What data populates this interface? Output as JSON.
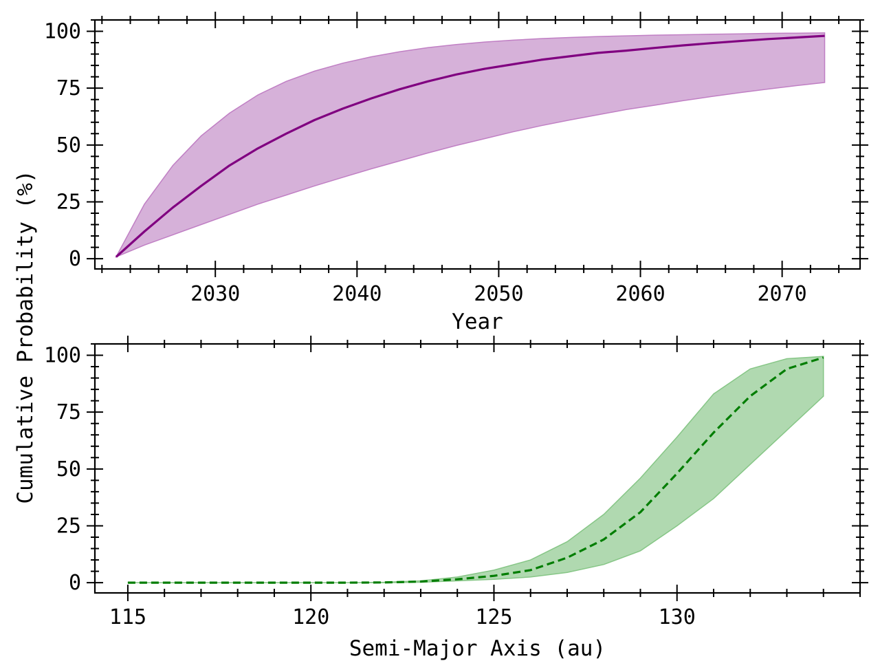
{
  "ylabel": "Cumulative Probability (%)",
  "chart_data": [
    {
      "type": "line",
      "xlabel": "Year",
      "ylabel": "Cumulative Probability (%)",
      "xlim": [
        2021.5,
        2075.5
      ],
      "ylim": [
        -4.5,
        105
      ],
      "xticks": [
        2030,
        2040,
        2050,
        2060,
        2070
      ],
      "yticks": [
        0,
        25,
        50,
        75,
        100
      ],
      "xminor_step": 2,
      "yminor_step": 5,
      "grid": false,
      "color": "#800080",
      "band_color": "#d6b1d9",
      "band_edge": "#c07fc4",
      "line_style": "solid",
      "x": [
        2023,
        2025,
        2027,
        2029,
        2031,
        2033,
        2035,
        2037,
        2039,
        2041,
        2043,
        2045,
        2047,
        2049,
        2051,
        2053,
        2055,
        2057,
        2059,
        2061,
        2063,
        2065,
        2067,
        2069,
        2071,
        2073
      ],
      "series": [
        {
          "values": [
            0.8,
            12,
            22.5,
            32,
            41,
            48.5,
            55,
            61,
            66,
            70.5,
            74.5,
            78,
            81,
            83.5,
            85.5,
            87.5,
            89,
            90.5,
            91.5,
            92.7,
            93.8,
            94.8,
            95.7,
            96.6,
            97.3,
            98
          ]
        }
      ],
      "band_lower": [
        0.8,
        6,
        10.5,
        15,
        19.5,
        24,
        28,
        32,
        35.8,
        39.5,
        43,
        46.5,
        49.8,
        52.8,
        55.8,
        58.5,
        61,
        63.3,
        65.6,
        67.5,
        69.5,
        71.3,
        73,
        74.6,
        76.1,
        77.5
      ],
      "band_upper": [
        0.8,
        24,
        41,
        54,
        64,
        72,
        78,
        82.5,
        86,
        88.8,
        91,
        92.8,
        94.2,
        95.3,
        96.1,
        96.8,
        97.3,
        97.7,
        98,
        98.3,
        98.5,
        98.7,
        98.9,
        99.1,
        99.2,
        99.3
      ]
    },
    {
      "type": "line",
      "xlabel": "Semi-Major Axis (au)",
      "ylabel": "Cumulative Probability (%)",
      "xlim": [
        114.1,
        135
      ],
      "ylim": [
        -4.5,
        105
      ],
      "xticks": [
        115,
        120,
        125,
        130
      ],
      "yticks": [
        0,
        25,
        50,
        75,
        100
      ],
      "xminor_step": 1,
      "yminor_step": 5,
      "grid": false,
      "color": "#007d00",
      "band_color": "#b0d9b0",
      "band_edge": "#86c686",
      "line_style": "dashed",
      "x": [
        115,
        116,
        117,
        118,
        119,
        120,
        121,
        122,
        123,
        124,
        125,
        126,
        127,
        128,
        129,
        130,
        131,
        132,
        133,
        134
      ],
      "series": [
        {
          "values": [
            0,
            0,
            0,
            0,
            0,
            0,
            0,
            0.1,
            0.5,
            1.5,
            3,
            5.5,
            11,
            19,
            31,
            48,
            66,
            82,
            94,
            99
          ]
        }
      ],
      "band_lower": [
        0,
        0,
        0,
        0,
        0,
        0,
        0,
        0,
        0.2,
        0.8,
        1.5,
        2.5,
        4.5,
        8,
        14,
        25,
        37,
        52,
        67,
        82
      ],
      "band_upper": [
        0,
        0,
        0,
        0,
        0,
        0,
        0,
        0.2,
        0.8,
        2.5,
        5.5,
        10,
        18,
        30,
        46,
        64,
        83,
        94,
        98.5,
        99.5
      ]
    }
  ]
}
